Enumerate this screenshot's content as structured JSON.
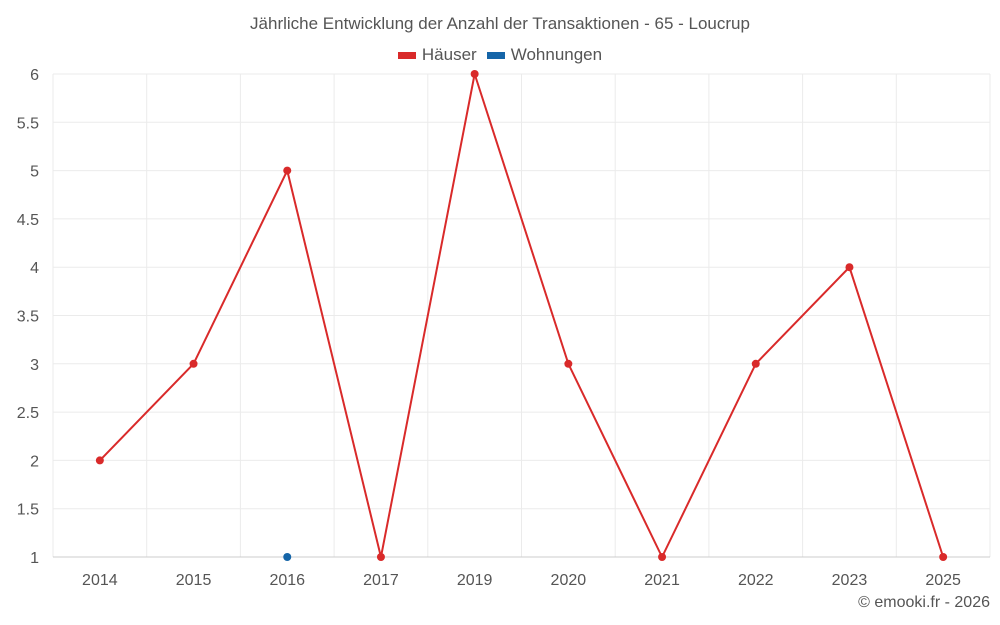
{
  "chart_data": {
    "type": "line",
    "title": "Jährliche Entwicklung der Anzahl der Transaktionen - 65 - Loucrup",
    "categories": [
      "2014",
      "2015",
      "2016",
      "2017",
      "2019",
      "2020",
      "2021",
      "2022",
      "2023",
      "2025"
    ],
    "series": [
      {
        "name": "Häuser",
        "color": "#d92a2a",
        "values": [
          2,
          3,
          5,
          1,
          6,
          3,
          1,
          3,
          4,
          1
        ]
      },
      {
        "name": "Wohnungen",
        "color": "#1565a8",
        "values": [
          null,
          null,
          1,
          null,
          null,
          null,
          null,
          null,
          null,
          null
        ]
      }
    ],
    "ylim": [
      1,
      6
    ],
    "yticks": [
      "1",
      "1.5",
      "2",
      "2.5",
      "3",
      "3.5",
      "4",
      "4.5",
      "5",
      "5.5",
      "6"
    ],
    "grid": true,
    "legend": "top-center",
    "xlabel": "",
    "ylabel": ""
  },
  "credit": "© emooki.fr - 2026"
}
